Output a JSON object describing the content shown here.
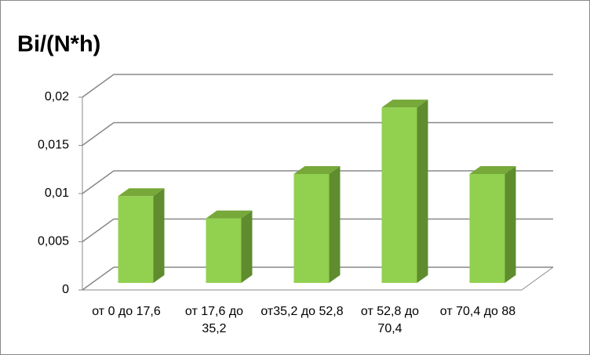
{
  "chart_data": {
    "type": "bar3d",
    "title": "Bi/(N*h)",
    "categories": [
      "от 0 до 17,6",
      "от 17,6 до 35,2",
      "от35,2 до 52,8",
      "от 52,8 до 70,4",
      "от 70,4 до 88"
    ],
    "values": [
      0.009,
      0.0067,
      0.0113,
      0.0182,
      0.0113
    ],
    "color": "#92d050",
    "ylim": [
      0,
      0.02
    ],
    "yticks": [
      0,
      {
        "value": 0.005,
        "label": "0,005"
      },
      {
        "value": 0.01,
        "label": "0,01"
      },
      {
        "value": 0.015,
        "label": "0,015"
      },
      {
        "value": 0.02,
        "label": "0,02"
      }
    ],
    "grid": true
  }
}
